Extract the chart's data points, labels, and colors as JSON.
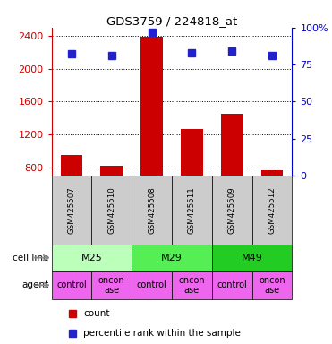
{
  "title": "GDS3759 / 224818_at",
  "samples": [
    "GSM425507",
    "GSM425510",
    "GSM425508",
    "GSM425511",
    "GSM425509",
    "GSM425512"
  ],
  "counts": [
    950,
    820,
    2390,
    1270,
    1450,
    760
  ],
  "percentile_ranks": [
    82,
    81,
    97,
    83,
    84,
    81
  ],
  "ylim_left": [
    700,
    2500
  ],
  "ylim_right": [
    0,
    100
  ],
  "yticks_left": [
    800,
    1200,
    1600,
    2000,
    2400
  ],
  "yticks_right": [
    0,
    25,
    50,
    75,
    100
  ],
  "bar_color": "#cc0000",
  "dot_color": "#2222cc",
  "cell_lines": [
    {
      "label": "M25",
      "span": [
        0,
        2
      ],
      "color": "#bbffbb"
    },
    {
      "label": "M29",
      "span": [
        2,
        4
      ],
      "color": "#55ee55"
    },
    {
      "label": "M49",
      "span": [
        4,
        6
      ],
      "color": "#22cc22"
    }
  ],
  "agents": [
    {
      "label": "control",
      "span": [
        0,
        1
      ]
    },
    {
      "label": "onconase",
      "span": [
        1,
        2
      ]
    },
    {
      "label": "control",
      "span": [
        2,
        3
      ]
    },
    {
      "label": "onconase",
      "span": [
        3,
        4
      ]
    },
    {
      "label": "control",
      "span": [
        4,
        5
      ]
    },
    {
      "label": "onconase",
      "span": [
        5,
        6
      ]
    }
  ],
  "agent_color": "#ee66ee",
  "gsm_row_color": "#cccccc",
  "legend_count_color": "#cc0000",
  "legend_dot_color": "#2222cc",
  "left_label_color": "#cc0000",
  "right_label_color": "#0000cc"
}
